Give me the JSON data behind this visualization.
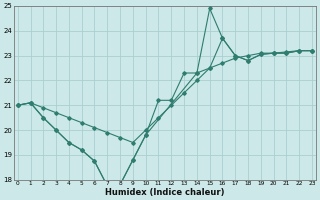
{
  "xlabel": "Humidex (Indice chaleur)",
  "color": "#2e7d6e",
  "bg_color": "#cce8e8",
  "grid_color": "#aacfcf",
  "ylim": [
    18,
    25
  ],
  "xlim": [
    -0.3,
    23.3
  ],
  "yticks": [
    18,
    19,
    20,
    21,
    22,
    23,
    24,
    25
  ],
  "xticks": [
    0,
    1,
    2,
    3,
    4,
    5,
    6,
    7,
    8,
    9,
    10,
    11,
    12,
    13,
    14,
    15,
    16,
    17,
    18,
    19,
    20,
    21,
    22,
    23
  ],
  "line1_x": [
    0,
    1,
    2,
    3,
    4,
    5,
    6,
    7,
    8,
    9,
    10,
    11,
    12,
    13,
    14,
    15,
    16,
    17,
    18,
    19,
    20,
    21,
    22,
    23
  ],
  "line1_y": [
    21.0,
    21.1,
    20.9,
    20.7,
    20.5,
    20.3,
    20.1,
    19.9,
    19.7,
    19.5,
    20.0,
    20.5,
    21.0,
    21.5,
    22.0,
    22.5,
    22.7,
    22.9,
    23.0,
    23.1,
    23.1,
    23.15,
    23.2,
    23.2
  ],
  "line2_x": [
    0,
    1,
    2,
    3,
    4,
    5,
    6,
    7,
    8,
    9,
    10,
    11,
    12,
    13,
    14,
    15,
    16,
    17,
    18,
    19,
    20,
    21,
    22,
    23
  ],
  "line2_y": [
    21.0,
    21.1,
    20.5,
    20.0,
    19.5,
    19.2,
    18.75,
    17.75,
    17.8,
    18.8,
    19.8,
    21.2,
    21.2,
    22.3,
    22.3,
    22.5,
    23.7,
    23.0,
    22.8,
    23.05,
    23.1,
    23.1,
    23.2,
    23.2
  ],
  "line3_x": [
    0,
    1,
    2,
    3,
    4,
    5,
    6,
    7,
    8,
    9,
    10,
    14,
    15,
    16,
    17,
    18,
    19,
    20,
    21,
    22,
    23
  ],
  "line3_y": [
    21.0,
    21.1,
    20.5,
    20.0,
    19.5,
    19.2,
    18.75,
    17.75,
    17.8,
    18.8,
    19.8,
    22.3,
    24.9,
    23.7,
    23.0,
    22.8,
    23.05,
    23.1,
    23.1,
    23.2,
    23.2
  ]
}
